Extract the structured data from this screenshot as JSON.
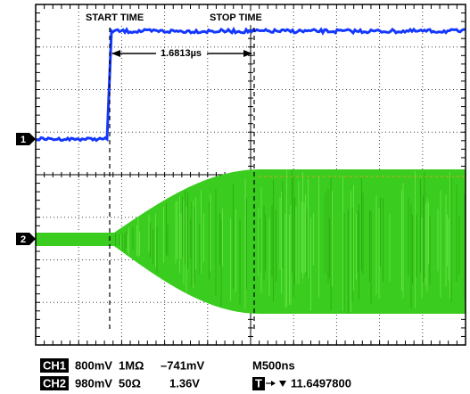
{
  "markers": {
    "start": "START TIME",
    "stop": "STOP TIME",
    "interval": "1.6813µs",
    "ch1": "1",
    "ch2": "2"
  },
  "readout": {
    "ch1": {
      "label": "CH1",
      "scale": "800mV",
      "impedance": "1MΩ",
      "offset": "–741mV"
    },
    "ch2": {
      "label": "CH2",
      "scale": "980mV",
      "impedance": "50Ω",
      "offset": "1.36V"
    },
    "timebase": "M500ns",
    "trigger": {
      "label": "T",
      "position": "11.6497800"
    }
  }
}
